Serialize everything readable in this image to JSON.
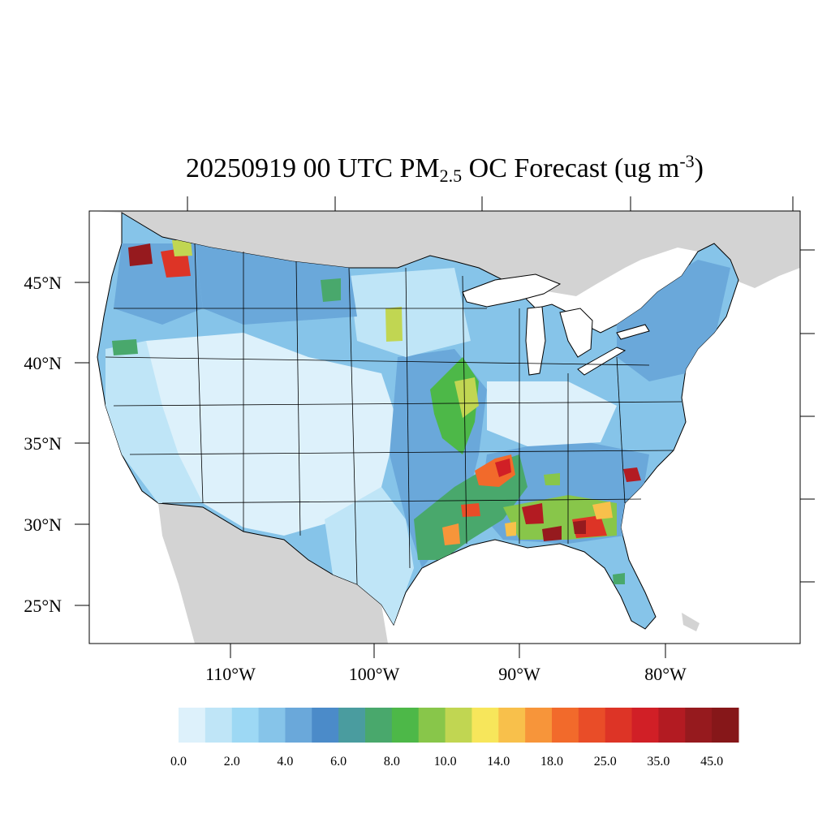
{
  "title": {
    "date": "20250919",
    "hour": "00 UTC",
    "species": "PM",
    "species_subscript": "2.5",
    "rest": "OC Forecast (ug m",
    "unit_superscript": "-3",
    "close": ")"
  },
  "lat_labels": [
    "45°N",
    "40°N",
    "35°N",
    "30°N",
    "25°N"
  ],
  "lon_labels": [
    "110°W",
    "100°W",
    "90°W",
    "80°W"
  ],
  "colorbar": {
    "colors": [
      "#ddf1fb",
      "#bfe5f7",
      "#9dd8f4",
      "#86c4e9",
      "#6aa8da",
      "#4b8bc9",
      "#4a9c9f",
      "#49a86c",
      "#4db848",
      "#88c64a",
      "#c1d652",
      "#f7e65b",
      "#f8c04b",
      "#f7953a",
      "#f26a2b",
      "#e94d28",
      "#dd3426",
      "#d11f26",
      "#b31b22",
      "#961a1e",
      "#861719"
    ],
    "labels": [
      "0.0",
      "2.0",
      "4.0",
      "6.0",
      "8.0",
      "10.0",
      "14.0",
      "18.0",
      "25.0",
      "35.0",
      "45.0"
    ]
  },
  "map_colors": {
    "land_other": "#d3d3d3",
    "ocean": "#ffffff",
    "border": "#000000"
  }
}
